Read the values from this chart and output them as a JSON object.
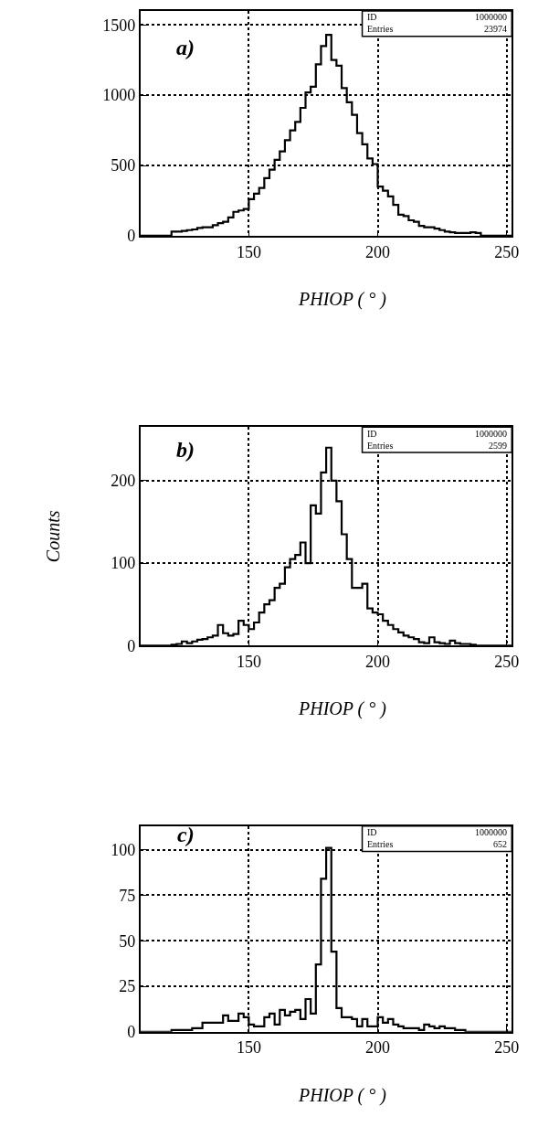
{
  "chart_data": [
    {
      "type": "histogram",
      "xlabel": "PHIOP ( ° )",
      "annotations": [
        "a)",
        "ID",
        "1000000",
        "Entries",
        "23974"
      ],
      "color": "#000000",
      "bins": [
        108,
        110,
        112,
        114,
        116,
        118,
        120,
        122,
        124,
        126,
        128,
        130,
        132,
        134,
        136,
        138,
        140,
        142,
        144,
        146,
        148,
        150,
        152,
        154,
        156,
        158,
        160,
        162,
        164,
        166,
        168,
        170,
        172,
        174,
        176,
        178,
        180,
        182,
        184,
        186,
        188,
        190,
        192,
        194,
        196,
        198,
        200,
        202,
        204,
        206,
        208,
        210,
        212,
        214,
        216,
        218,
        220,
        222,
        224,
        226,
        228,
        230,
        232,
        234,
        236,
        238,
        240,
        242,
        244,
        246,
        248,
        250,
        252
      ],
      "values": [
        0,
        0,
        0,
        0,
        0,
        0,
        30,
        30,
        35,
        40,
        45,
        55,
        60,
        60,
        75,
        90,
        100,
        130,
        170,
        180,
        190,
        260,
        300,
        340,
        410,
        470,
        540,
        600,
        680,
        750,
        810,
        910,
        1020,
        1060,
        1220,
        1350,
        1430,
        1250,
        1210,
        1050,
        950,
        860,
        730,
        650,
        550,
        510,
        350,
        320,
        280,
        220,
        150,
        140,
        110,
        100,
        70,
        60,
        60,
        50,
        40,
        30,
        25,
        20,
        20,
        20,
        25,
        20,
        0,
        0,
        0,
        0,
        0,
        0
      ],
      "xlim": [
        108,
        252
      ],
      "xticks": [
        150,
        200,
        250
      ],
      "ylim": [
        0,
        1600
      ],
      "yticks": [
        0,
        500,
        1000,
        1500
      ],
      "grid": true,
      "line_style": "solid"
    },
    {
      "type": "histogram",
      "xlabel": "PHIOP ( ° )",
      "ylabel": "Counts",
      "annotations": [
        "b)",
        "ID",
        "1000000",
        "Entries",
        "2599"
      ],
      "color": "#000000",
      "bins": [
        108,
        110,
        112,
        114,
        116,
        118,
        120,
        122,
        124,
        126,
        128,
        130,
        132,
        134,
        136,
        138,
        140,
        142,
        144,
        146,
        148,
        150,
        152,
        154,
        156,
        158,
        160,
        162,
        164,
        166,
        168,
        170,
        172,
        174,
        176,
        178,
        180,
        182,
        184,
        186,
        188,
        190,
        192,
        194,
        196,
        198,
        200,
        202,
        204,
        206,
        208,
        210,
        212,
        214,
        216,
        218,
        220,
        222,
        224,
        226,
        228,
        230,
        232,
        234,
        236,
        238,
        240,
        242,
        244,
        246,
        248,
        250,
        252
      ],
      "values": [
        0,
        0,
        0,
        0,
        0,
        0,
        1,
        2,
        5,
        3,
        5,
        7,
        8,
        10,
        12,
        25,
        15,
        12,
        14,
        30,
        25,
        20,
        28,
        40,
        50,
        55,
        70,
        75,
        95,
        105,
        110,
        125,
        100,
        170,
        160,
        210,
        240,
        200,
        175,
        135,
        105,
        70,
        70,
        75,
        45,
        40,
        38,
        30,
        25,
        20,
        16,
        12,
        10,
        8,
        4,
        3,
        10,
        4,
        3,
        2,
        6,
        3,
        2,
        2,
        1,
        0,
        0,
        0,
        0,
        0,
        0,
        0
      ],
      "xlim": [
        108,
        252
      ],
      "xticks": [
        150,
        200,
        250
      ],
      "ylim": [
        0,
        265
      ],
      "yticks": [
        0,
        100,
        200
      ],
      "grid": true,
      "line_style": "solid"
    },
    {
      "type": "histogram",
      "xlabel": "PHIOP ( ° )",
      "annotations": [
        "c)",
        "ID",
        "1000000",
        "Entries",
        "652"
      ],
      "color": "#000000",
      "bins": [
        108,
        110,
        112,
        114,
        116,
        118,
        120,
        122,
        124,
        126,
        128,
        130,
        132,
        134,
        136,
        138,
        140,
        142,
        144,
        146,
        148,
        150,
        152,
        154,
        156,
        158,
        160,
        162,
        164,
        166,
        168,
        170,
        172,
        174,
        176,
        178,
        180,
        182,
        184,
        186,
        188,
        190,
        192,
        194,
        196,
        198,
        200,
        202,
        204,
        206,
        208,
        210,
        212,
        214,
        216,
        218,
        220,
        222,
        224,
        226,
        228,
        230,
        232,
        234,
        236,
        238,
        240,
        242,
        244,
        246,
        248,
        250,
        252
      ],
      "values": [
        0,
        0,
        0,
        0,
        0,
        0,
        1,
        1,
        1,
        1,
        2,
        2,
        5,
        5,
        5,
        5,
        9,
        6,
        6,
        10,
        8,
        4,
        3,
        3,
        8,
        10,
        4,
        12,
        9,
        11,
        12,
        7,
        18,
        10,
        37,
        84,
        101,
        44,
        13,
        8,
        8,
        7,
        3,
        7,
        3,
        3,
        8,
        5,
        7,
        4,
        3,
        2,
        2,
        2,
        1,
        4,
        3,
        2,
        3,
        2,
        2,
        1,
        1,
        0,
        0,
        0,
        0,
        0,
        0,
        0,
        0,
        0
      ],
      "xlim": [
        108,
        252
      ],
      "xticks": [
        150,
        200,
        250
      ],
      "ylim": [
        0,
        113
      ],
      "yticks": [
        0,
        25,
        50,
        75,
        100
      ],
      "grid": true,
      "line_style": "solid"
    }
  ]
}
